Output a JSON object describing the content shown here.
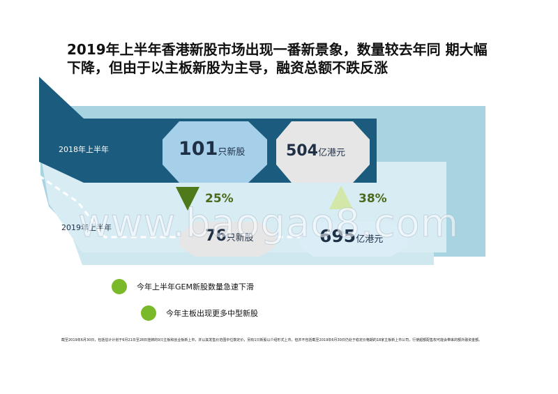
{
  "title": "2019年上半年香港新股市场出现一番新景象，数量较去年同 期大幅下降，但由于以主板新股为主导，融资总额不跌反涨",
  "rows": {
    "y2018": {
      "label": "2018年上半年",
      "count": "101",
      "count_unit": "只新股",
      "amount": "504",
      "amount_unit": "亿港元"
    },
    "y2019": {
      "label": "2019年上半年",
      "count": "76",
      "count_unit": "只新股",
      "amount": "695",
      "amount_unit": "亿港元"
    }
  },
  "changes": {
    "count_change": {
      "value": "25%",
      "direction": "down"
    },
    "amount_change": {
      "value": "38%",
      "direction": "up"
    }
  },
  "bullets": [
    {
      "text": "今年上半年GEM新股数量急速下滑"
    },
    {
      "text": "今年主板出现更多中型新股"
    }
  ],
  "footnote": "截至2019年6月30日，包括估计计划于6月21日至28日挂牌的9只主板和创业板新上市，并以其发售价范围中位数定价，另有1只新股以介绍形式上市，但并不包括截至2019年6月30日仍处于稳定价格期的18家主板新上市公司，行使超额配售权可能会带来的额外融资金额。",
  "watermark": "www.baogao8.com",
  "colors": {
    "dark_band": "#1a5b7e",
    "light_band": "#a8d4e2",
    "pale_band": "#d6ebf1",
    "oct_blue": "#a6cfea",
    "oct_grey": "#e6e6e6",
    "oct_pale": "#dbedf7",
    "down_triangle": "#4f7a1c",
    "up_triangle": "#d3e8a8",
    "bullet_green": "#7ab929"
  }
}
